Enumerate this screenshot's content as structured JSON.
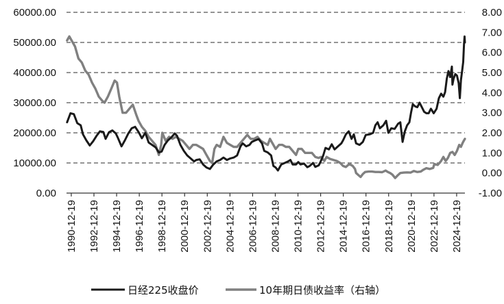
{
  "chart_data": {
    "type": "line",
    "title": "",
    "xlabel": "",
    "ylabel": "",
    "grid": true,
    "legend_position": "bottom",
    "x_tick_labels": [
      "1990-12-19",
      "1992-12-19",
      "1994-12-19",
      "1996-12-19",
      "1998-12-19",
      "2000-12-19",
      "2002-12-19",
      "2004-12-19",
      "2006-12-19",
      "2008-12-19",
      "2010-12-19",
      "2012-12-19",
      "2014-12-19",
      "2016-12-19",
      "2018-12-19",
      "2020-12-19",
      "2022-12-19",
      "2024-12-19"
    ],
    "x_range": [
      1990.55,
      2025.7
    ],
    "y_left": {
      "range": [
        0,
        60000
      ],
      "ticks": [
        "0.00",
        "10000.00",
        "20000.00",
        "30000.00",
        "40000.00",
        "50000.00",
        "60000.00"
      ]
    },
    "y_right": {
      "range": [
        -1,
        8
      ],
      "ticks": [
        "-1.00",
        "0.00",
        "1.00",
        "2.00",
        "3.00",
        "4.00",
        "5.00",
        "6.00",
        "7.00",
        "8.00"
      ]
    },
    "series": [
      {
        "name": "日经225收盘价",
        "axis": "left",
        "color": "#1a1a1a",
        "points": [
          [
            1990.6,
            23500
          ],
          [
            1990.9,
            26500
          ],
          [
            1991.2,
            26200
          ],
          [
            1991.5,
            23200
          ],
          [
            1991.8,
            22500
          ],
          [
            1992.0,
            19500
          ],
          [
            1992.3,
            17500
          ],
          [
            1992.6,
            15800
          ],
          [
            1992.9,
            17200
          ],
          [
            1993.2,
            19000
          ],
          [
            1993.5,
            20500
          ],
          [
            1993.8,
            20300
          ],
          [
            1994.0,
            18000
          ],
          [
            1994.3,
            20200
          ],
          [
            1994.6,
            20800
          ],
          [
            1994.9,
            19800
          ],
          [
            1995.1,
            18200
          ],
          [
            1995.4,
            15500
          ],
          [
            1995.7,
            17500
          ],
          [
            1996.0,
            19800
          ],
          [
            1996.3,
            21500
          ],
          [
            1996.6,
            22000
          ],
          [
            1996.9,
            20300
          ],
          [
            1997.2,
            18200
          ],
          [
            1997.5,
            20000
          ],
          [
            1997.8,
            16800
          ],
          [
            1998.1,
            16000
          ],
          [
            1998.4,
            15200
          ],
          [
            1998.7,
            13500
          ],
          [
            1998.95,
            13800
          ],
          [
            1999.2,
            16000
          ],
          [
            1999.5,
            17500
          ],
          [
            1999.8,
            18500
          ],
          [
            2000.1,
            19800
          ],
          [
            2000.3,
            19000
          ],
          [
            2000.6,
            16000
          ],
          [
            2000.9,
            14000
          ],
          [
            2001.2,
            12500
          ],
          [
            2001.5,
            11500
          ],
          [
            2001.8,
            10500
          ],
          [
            2002.0,
            11000
          ],
          [
            2002.3,
            11200
          ],
          [
            2002.6,
            9500
          ],
          [
            2002.9,
            8500
          ],
          [
            2003.2,
            8000
          ],
          [
            2003.5,
            9500
          ],
          [
            2003.8,
            10500
          ],
          [
            2004.1,
            11000
          ],
          [
            2004.4,
            11800
          ],
          [
            2004.7,
            11000
          ],
          [
            2005.0,
            11500
          ],
          [
            2005.3,
            11800
          ],
          [
            2005.6,
            12500
          ],
          [
            2005.9,
            15500
          ],
          [
            2006.1,
            16500
          ],
          [
            2006.4,
            15500
          ],
          [
            2006.7,
            16000
          ],
          [
            2006.9,
            17000
          ],
          [
            2007.2,
            17500
          ],
          [
            2007.5,
            17900
          ],
          [
            2007.8,
            16500
          ],
          [
            2008.0,
            14000
          ],
          [
            2008.3,
            13500
          ],
          [
            2008.6,
            12500
          ],
          [
            2008.8,
            9000
          ],
          [
            2009.0,
            8500
          ],
          [
            2009.2,
            7500
          ],
          [
            2009.5,
            9500
          ],
          [
            2009.8,
            10000
          ],
          [
            2010.1,
            10500
          ],
          [
            2010.3,
            11000
          ],
          [
            2010.5,
            9500
          ],
          [
            2010.8,
            9500
          ],
          [
            2011.0,
            10300
          ],
          [
            2011.2,
            9500
          ],
          [
            2011.5,
            9800
          ],
          [
            2011.8,
            8600
          ],
          [
            2012.0,
            9000
          ],
          [
            2012.3,
            10000
          ],
          [
            2012.5,
            8700
          ],
          [
            2012.8,
            9200
          ],
          [
            2012.95,
            10300
          ],
          [
            2013.2,
            12500
          ],
          [
            2013.4,
            15000
          ],
          [
            2013.7,
            14500
          ],
          [
            2013.95,
            16200
          ],
          [
            2014.2,
            14500
          ],
          [
            2014.5,
            15500
          ],
          [
            2014.8,
            16500
          ],
          [
            2014.95,
            17500
          ],
          [
            2015.2,
            19500
          ],
          [
            2015.45,
            20500
          ],
          [
            2015.7,
            18000
          ],
          [
            2015.9,
            19500
          ],
          [
            2016.1,
            16500
          ],
          [
            2016.4,
            16000
          ],
          [
            2016.7,
            17000
          ],
          [
            2016.95,
            19300
          ],
          [
            2017.3,
            19500
          ],
          [
            2017.6,
            20000
          ],
          [
            2017.8,
            22500
          ],
          [
            2018.0,
            23500
          ],
          [
            2018.2,
            21500
          ],
          [
            2018.5,
            22500
          ],
          [
            2018.75,
            24000
          ],
          [
            2018.95,
            20000
          ],
          [
            2019.2,
            21500
          ],
          [
            2019.5,
            21300
          ],
          [
            2019.8,
            23000
          ],
          [
            2020.0,
            23500
          ],
          [
            2020.2,
            17000
          ],
          [
            2020.4,
            20500
          ],
          [
            2020.6,
            22500
          ],
          [
            2020.8,
            23500
          ],
          [
            2020.95,
            26800
          ],
          [
            2021.1,
            29500
          ],
          [
            2021.3,
            28800
          ],
          [
            2021.5,
            28500
          ],
          [
            2021.7,
            30000
          ],
          [
            2021.9,
            28500
          ],
          [
            2022.1,
            27000
          ],
          [
            2022.3,
            26500
          ],
          [
            2022.5,
            26500
          ],
          [
            2022.7,
            28000
          ],
          [
            2022.95,
            26500
          ],
          [
            2023.2,
            28000
          ],
          [
            2023.4,
            31500
          ],
          [
            2023.6,
            33000
          ],
          [
            2023.8,
            32000
          ],
          [
            2023.95,
            33500
          ],
          [
            2024.1,
            38000
          ],
          [
            2024.25,
            40500
          ],
          [
            2024.4,
            38500
          ],
          [
            2024.55,
            42000
          ],
          [
            2024.6,
            36000
          ],
          [
            2024.7,
            38000
          ],
          [
            2024.85,
            39500
          ],
          [
            2025.0,
            39000
          ],
          [
            2025.15,
            36500
          ],
          [
            2025.25,
            31500
          ],
          [
            2025.35,
            37500
          ],
          [
            2025.45,
            40500
          ],
          [
            2025.55,
            43500
          ],
          [
            2025.62,
            49500
          ],
          [
            2025.67,
            52000
          ],
          [
            2025.7,
            50000
          ]
        ]
      },
      {
        "name": "10年期日债收益率（右轴）",
        "axis": "right",
        "color": "#808080",
        "points": [
          [
            1990.6,
            6.6
          ],
          [
            1990.8,
            6.8
          ],
          [
            1991.0,
            6.6
          ],
          [
            1991.3,
            6.3
          ],
          [
            1991.6,
            5.7
          ],
          [
            1991.9,
            5.5
          ],
          [
            1992.2,
            5.1
          ],
          [
            1992.5,
            4.9
          ],
          [
            1992.8,
            4.5
          ],
          [
            1993.1,
            4.2
          ],
          [
            1993.4,
            3.8
          ],
          [
            1993.7,
            3.6
          ],
          [
            1993.9,
            3.5
          ],
          [
            1994.2,
            3.8
          ],
          [
            1994.5,
            4.2
          ],
          [
            1994.8,
            4.6
          ],
          [
            1995.0,
            4.5
          ],
          [
            1995.2,
            3.8
          ],
          [
            1995.5,
            3.0
          ],
          [
            1995.8,
            3.0
          ],
          [
            1996.1,
            3.2
          ],
          [
            1996.4,
            3.4
          ],
          [
            1996.7,
            2.9
          ],
          [
            1996.9,
            2.6
          ],
          [
            1997.2,
            2.3
          ],
          [
            1997.5,
            2.1
          ],
          [
            1997.8,
            1.8
          ],
          [
            1998.1,
            1.6
          ],
          [
            1998.4,
            1.4
          ],
          [
            1998.7,
            0.9
          ],
          [
            1998.9,
            1.4
          ],
          [
            1999.0,
            2.0
          ],
          [
            1999.3,
            1.6
          ],
          [
            1999.6,
            1.8
          ],
          [
            1999.9,
            1.7
          ],
          [
            2000.2,
            1.8
          ],
          [
            2000.5,
            1.7
          ],
          [
            2000.8,
            1.6
          ],
          [
            2001.1,
            1.4
          ],
          [
            2001.4,
            1.2
          ],
          [
            2001.7,
            1.4
          ],
          [
            2002.0,
            1.4
          ],
          [
            2002.3,
            1.3
          ],
          [
            2002.6,
            1.2
          ],
          [
            2002.9,
            0.9
          ],
          [
            2003.2,
            0.6
          ],
          [
            2003.4,
            0.5
          ],
          [
            2003.6,
            1.2
          ],
          [
            2003.8,
            1.4
          ],
          [
            2004.1,
            1.3
          ],
          [
            2004.4,
            1.8
          ],
          [
            2004.7,
            1.5
          ],
          [
            2005.0,
            1.4
          ],
          [
            2005.3,
            1.3
          ],
          [
            2005.6,
            1.3
          ],
          [
            2005.9,
            1.5
          ],
          [
            2006.2,
            1.7
          ],
          [
            2006.5,
            1.9
          ],
          [
            2006.8,
            1.7
          ],
          [
            2007.1,
            1.7
          ],
          [
            2007.4,
            1.8
          ],
          [
            2007.7,
            1.6
          ],
          [
            2008.0,
            1.5
          ],
          [
            2008.3,
            1.4
          ],
          [
            2008.5,
            1.7
          ],
          [
            2008.8,
            1.4
          ],
          [
            2009.0,
            1.2
          ],
          [
            2009.3,
            1.4
          ],
          [
            2009.6,
            1.4
          ],
          [
            2009.9,
            1.3
          ],
          [
            2010.2,
            1.3
          ],
          [
            2010.5,
            1.1
          ],
          [
            2010.8,
            0.9
          ],
          [
            2011.0,
            1.2
          ],
          [
            2011.3,
            1.2
          ],
          [
            2011.6,
            1.0
          ],
          [
            2011.9,
            1.0
          ],
          [
            2012.2,
            1.0
          ],
          [
            2012.5,
            0.8
          ],
          [
            2012.8,
            0.75
          ],
          [
            2013.0,
            0.8
          ],
          [
            2013.3,
            0.6
          ],
          [
            2013.5,
            0.8
          ],
          [
            2013.8,
            0.7
          ],
          [
            2014.1,
            0.65
          ],
          [
            2014.4,
            0.6
          ],
          [
            2014.7,
            0.5
          ],
          [
            2014.95,
            0.35
          ],
          [
            2015.2,
            0.3
          ],
          [
            2015.5,
            0.45
          ],
          [
            2015.8,
            0.35
          ],
          [
            2016.0,
            0.2
          ],
          [
            2016.1,
            0.0
          ],
          [
            2016.3,
            -0.1
          ],
          [
            2016.5,
            -0.2
          ],
          [
            2016.7,
            -0.05
          ],
          [
            2016.9,
            0.05
          ],
          [
            2017.2,
            0.07
          ],
          [
            2017.5,
            0.07
          ],
          [
            2017.8,
            0.05
          ],
          [
            2018.1,
            0.05
          ],
          [
            2018.4,
            0.04
          ],
          [
            2018.7,
            0.12
          ],
          [
            2018.9,
            0.05
          ],
          [
            2019.1,
            0.0
          ],
          [
            2019.3,
            -0.08
          ],
          [
            2019.55,
            -0.25
          ],
          [
            2019.8,
            -0.1
          ],
          [
            2020.0,
            0.0
          ],
          [
            2020.3,
            0.02
          ],
          [
            2020.6,
            0.03
          ],
          [
            2020.9,
            0.02
          ],
          [
            2021.2,
            0.1
          ],
          [
            2021.5,
            0.05
          ],
          [
            2021.8,
            0.07
          ],
          [
            2022.0,
            0.15
          ],
          [
            2022.3,
            0.24
          ],
          [
            2022.6,
            0.2
          ],
          [
            2022.9,
            0.25
          ],
          [
            2023.0,
            0.45
          ],
          [
            2023.3,
            0.4
          ],
          [
            2023.6,
            0.6
          ],
          [
            2023.8,
            0.8
          ],
          [
            2024.0,
            0.6
          ],
          [
            2024.2,
            0.75
          ],
          [
            2024.4,
            1.0
          ],
          [
            2024.6,
            1.05
          ],
          [
            2024.8,
            0.9
          ],
          [
            2025.0,
            1.1
          ],
          [
            2025.2,
            1.4
          ],
          [
            2025.35,
            1.3
          ],
          [
            2025.5,
            1.5
          ],
          [
            2025.6,
            1.6
          ],
          [
            2025.7,
            1.7
          ]
        ]
      }
    ]
  }
}
